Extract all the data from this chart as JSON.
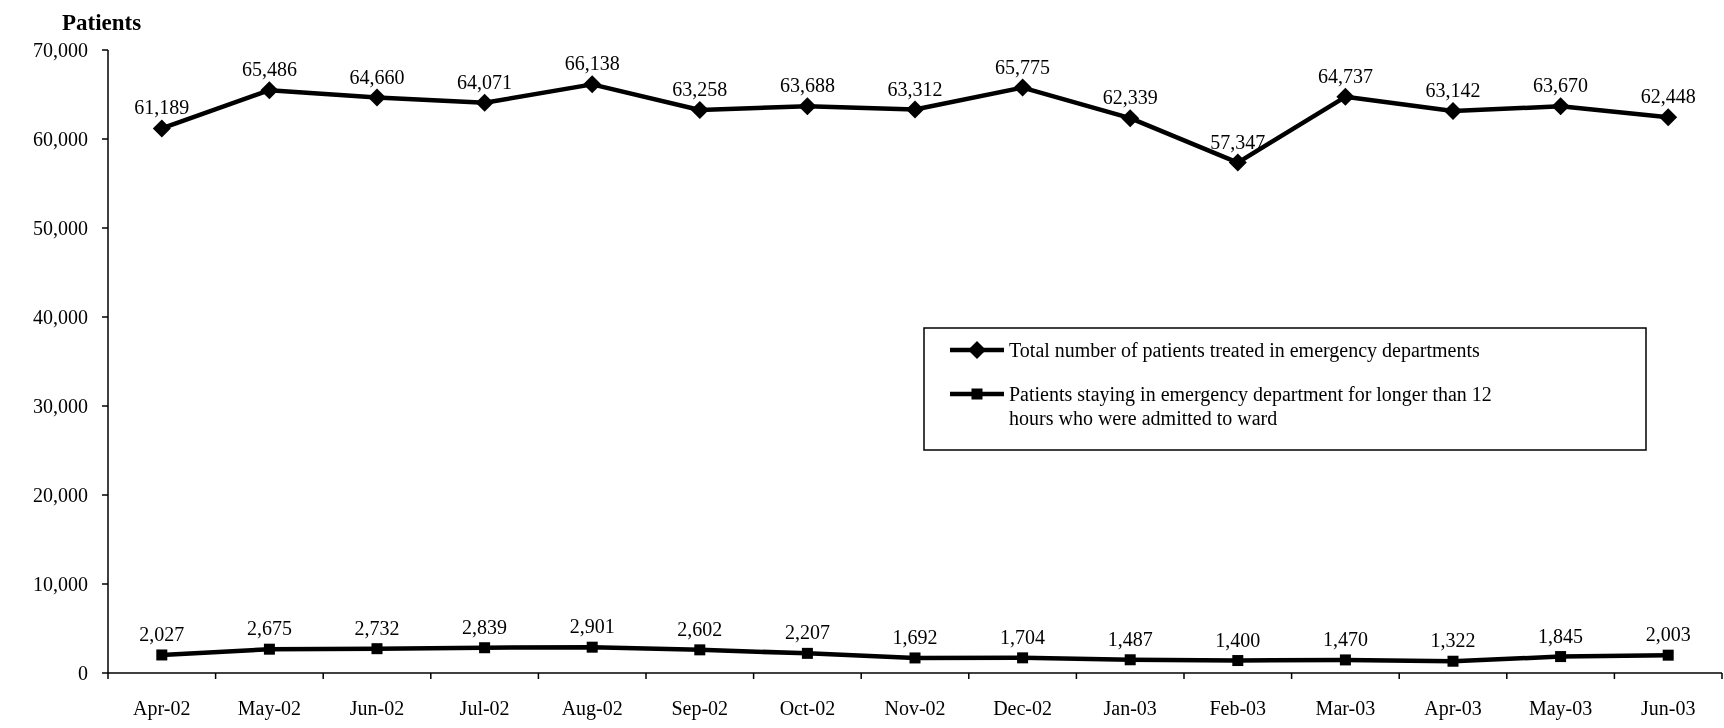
{
  "chart_data": {
    "type": "line",
    "ylabel": "Patients",
    "categories": [
      "Apr-02",
      "May-02",
      "Jun-02",
      "Jul-02",
      "Aug-02",
      "Sep-02",
      "Oct-02",
      "Nov-02",
      "Dec-02",
      "Jan-03",
      "Feb-03",
      "Mar-03",
      "Apr-03",
      "May-03",
      "Jun-03"
    ],
    "series": [
      {
        "name": "Total number of patients treated in emergency departments",
        "color": "#000000",
        "marker": "diamond",
        "values": [
          61189,
          65486,
          64660,
          64071,
          66138,
          63258,
          63688,
          63312,
          65775,
          62339,
          57347,
          64737,
          63142,
          63670,
          62448
        ],
        "value_labels": [
          "61,189",
          "65,486",
          "64,660",
          "64,071",
          "66,138",
          "63,258",
          "63,688",
          "63,312",
          "65,775",
          "62,339",
          "57,347",
          "64,737",
          "63,142",
          "63,670",
          "62,448"
        ]
      },
      {
        "name": "Patients staying in emergency department for longer than 12 hours who were admitted to ward",
        "color": "#000000",
        "marker": "square",
        "values": [
          2027,
          2675,
          2732,
          2839,
          2901,
          2602,
          2207,
          1692,
          1704,
          1487,
          1400,
          1470,
          1322,
          1845,
          2003
        ],
        "value_labels": [
          "2,027",
          "2,675",
          "2,732",
          "2,839",
          "2,901",
          "2,602",
          "2,207",
          "1,692",
          "1,704",
          "1,487",
          "1,400",
          "1,470",
          "1,322",
          "1,845",
          "2,003"
        ]
      }
    ],
    "ylim": [
      0,
      70000
    ],
    "yticks": [
      {
        "value": 0,
        "label": "0"
      },
      {
        "value": 10000,
        "label": "10,000"
      },
      {
        "value": 20000,
        "label": "20,000"
      },
      {
        "value": 30000,
        "label": "30,000"
      },
      {
        "value": 40000,
        "label": "40,000"
      },
      {
        "value": 50000,
        "label": "50,000"
      },
      {
        "value": 60000,
        "label": "60,000"
      },
      {
        "value": 70000,
        "label": "70,000"
      }
    ],
    "legend": "right",
    "grid": false,
    "line_style": "solid"
  }
}
